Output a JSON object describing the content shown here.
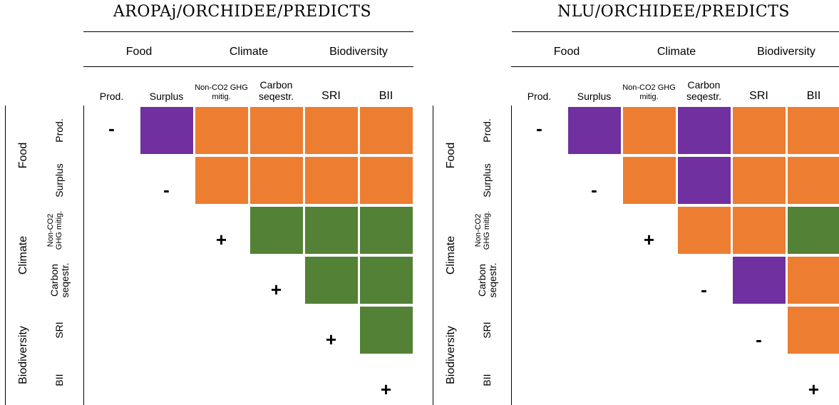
{
  "colors": {
    "purple": "#7030a0",
    "orange": "#ed7d31",
    "green": "#538135"
  },
  "col_groups": [
    "Food",
    "Climate",
    "Biodiversity"
  ],
  "row_groups": [
    "Food",
    "Climate",
    "Biodiversity"
  ],
  "columns": [
    "Prod.",
    "Surplus",
    "Non-CO2 GHG mitig.",
    "Carbon seqestr.",
    "SRI",
    "BII"
  ],
  "rows": [
    "Prod.",
    "Surplus",
    "Non-CO2 GHG mitig.",
    "Carbon seqestr.",
    "SRI",
    "BII"
  ],
  "panels": [
    {
      "title": "AROPAj/ORCHIDEE/PREDICTS",
      "diagonal": [
        "-",
        "-",
        "+",
        "+",
        "+",
        "+"
      ],
      "matrix": [
        [
          null,
          "purple",
          "orange",
          "orange",
          "orange",
          "orange"
        ],
        [
          null,
          null,
          "orange",
          "orange",
          "orange",
          "orange"
        ],
        [
          null,
          null,
          null,
          "green",
          "green",
          "green"
        ],
        [
          null,
          null,
          null,
          null,
          "green",
          "green"
        ],
        [
          null,
          null,
          null,
          null,
          null,
          "green"
        ],
        [
          null,
          null,
          null,
          null,
          null,
          null
        ]
      ]
    },
    {
      "title": "NLU/ORCHIDEE/PREDICTS",
      "diagonal": [
        "-",
        "-",
        "+",
        "-",
        "-",
        "+"
      ],
      "matrix": [
        [
          null,
          "purple",
          "orange",
          "purple",
          "orange",
          "orange"
        ],
        [
          null,
          null,
          "orange",
          "purple",
          "orange",
          "orange"
        ],
        [
          null,
          null,
          null,
          "orange",
          "orange",
          "green"
        ],
        [
          null,
          null,
          null,
          null,
          "purple",
          "orange"
        ],
        [
          null,
          null,
          null,
          null,
          null,
          "orange"
        ],
        [
          null,
          null,
          null,
          null,
          null,
          null
        ]
      ]
    }
  ]
}
